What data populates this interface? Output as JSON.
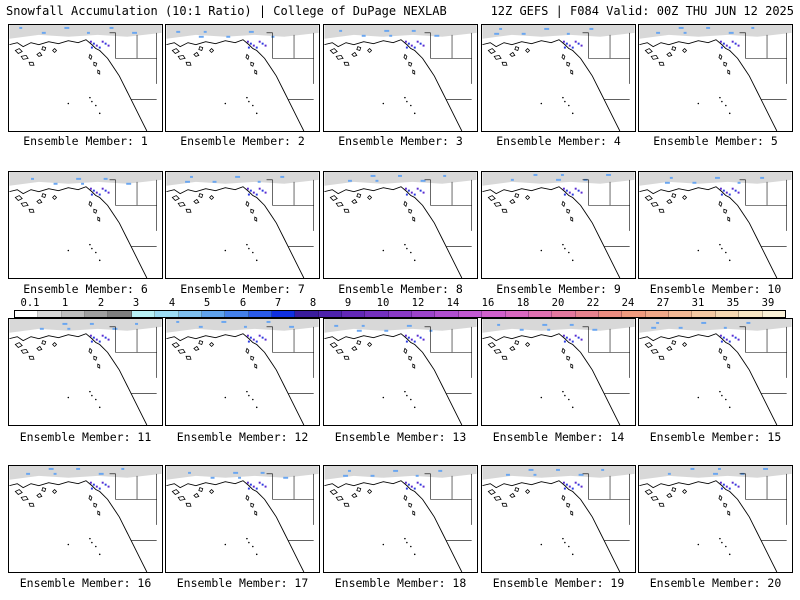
{
  "header": {
    "left": "Snowfall Accumulation (10:1 Ratio) | College of DuPage NEXLAB",
    "right": "12Z GEFS | F084 Valid: 00Z THU JUN 12 2025"
  },
  "panels": [
    {
      "label": "Ensemble Member: 1"
    },
    {
      "label": "Ensemble Member: 2"
    },
    {
      "label": "Ensemble Member: 3"
    },
    {
      "label": "Ensemble Member: 4"
    },
    {
      "label": "Ensemble Member: 5"
    },
    {
      "label": "Ensemble Member: 6"
    },
    {
      "label": "Ensemble Member: 7"
    },
    {
      "label": "Ensemble Member: 8"
    },
    {
      "label": "Ensemble Member: 9"
    },
    {
      "label": "Ensemble Member: 10"
    },
    {
      "label": "Ensemble Member: 11"
    },
    {
      "label": "Ensemble Member: 12"
    },
    {
      "label": "Ensemble Member: 13"
    },
    {
      "label": "Ensemble Member: 14"
    },
    {
      "label": "Ensemble Member: 15"
    },
    {
      "label": "Ensemble Member: 16"
    },
    {
      "label": "Ensemble Member: 17"
    },
    {
      "label": "Ensemble Member: 18"
    },
    {
      "label": "Ensemble Member: 19"
    },
    {
      "label": "Ensemble Member: 20"
    }
  ],
  "legend": {
    "ticks": [
      "0.1",
      "1",
      "2",
      "3",
      "4",
      "5",
      "6",
      "7",
      "8",
      "9",
      "10",
      "12",
      "14",
      "16",
      "18",
      "20",
      "22",
      "24",
      "27",
      "31",
      "35",
      "39"
    ],
    "colors": [
      "#ffffff",
      "#d9d9d9",
      "#bdbdbd",
      "#9e9e9e",
      "#7f7f7f",
      "#b8f0f5",
      "#9cdcf4",
      "#7fc0f0",
      "#5fa2ec",
      "#4480ea",
      "#2a5ae8",
      "#1030e0",
      "#3a1c9c",
      "#4d22ac",
      "#6228b6",
      "#7430be",
      "#8a3ac6",
      "#9c44ca",
      "#b04ed0",
      "#c258d2",
      "#d060cc",
      "#d868c0",
      "#de70b0",
      "#e2789e",
      "#e6828e",
      "#ea8c80",
      "#ee9a7e",
      "#f0a888",
      "#f2b894",
      "#f4c8a2",
      "#f6d8b2",
      "#f8e6c4",
      "#faf0d6"
    ]
  },
  "map": {
    "land_color": "#ffffff",
    "coast_color": "#000000",
    "snow_light_color": "#c8c8c8",
    "snow_blue_color": "#6aa6f0",
    "snow_heavy_color": "#2a3ae0"
  }
}
